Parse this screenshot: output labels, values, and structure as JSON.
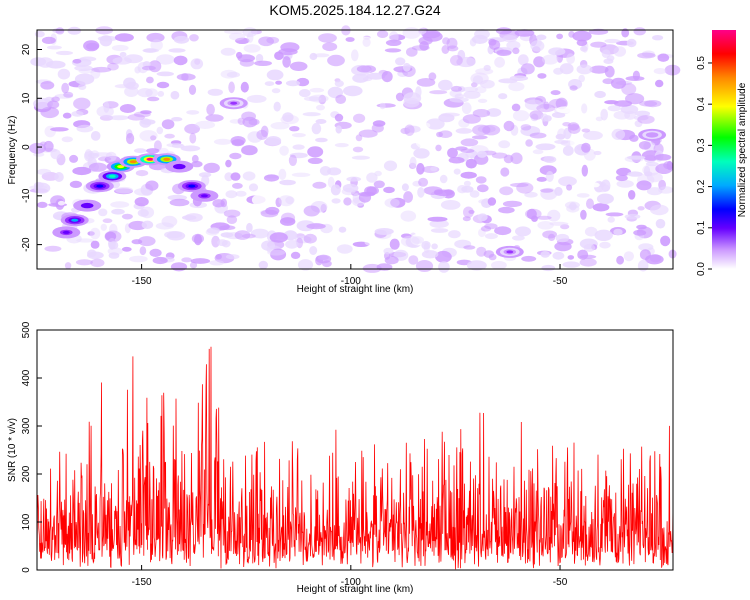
{
  "chart_data": [
    {
      "type": "heatmap",
      "title": "KOM5.2025.184.12.27.G24",
      "xlabel": "Height of straight line (km)",
      "ylabel": "Frequency (Hz)",
      "xlim": [
        -175,
        -23
      ],
      "ylim": [
        -25,
        24
      ],
      "x_ticks": [
        -150,
        -100,
        -50
      ],
      "y_ticks": [
        20,
        10,
        0,
        -10,
        -20
      ],
      "colorbar": {
        "label": "Normalized spectral amplitude",
        "range": [
          0,
          0.58
        ],
        "ticks": [
          0.0,
          0.1,
          0.2,
          0.3,
          0.4,
          0.5
        ]
      },
      "features": [
        {
          "x": -155.0,
          "y": -4.0,
          "value": 0.45
        },
        {
          "x": -152.0,
          "y": -3.0,
          "value": 0.5
        },
        {
          "x": -148.0,
          "y": -2.5,
          "value": 0.57
        },
        {
          "x": -144.0,
          "y": -2.5,
          "value": 0.5
        },
        {
          "x": -157.0,
          "y": -6.0,
          "value": 0.32
        },
        {
          "x": -160.0,
          "y": -8.0,
          "value": 0.22
        },
        {
          "x": -163.0,
          "y": -12.0,
          "value": 0.2
        },
        {
          "x": -166.0,
          "y": -15.0,
          "value": 0.25
        },
        {
          "x": -168.0,
          "y": -17.5,
          "value": 0.18
        },
        {
          "x": -141.0,
          "y": -4.0,
          "value": 0.2
        },
        {
          "x": -138.0,
          "y": -8.0,
          "value": 0.24
        },
        {
          "x": -135.0,
          "y": -10.0,
          "value": 0.18
        },
        {
          "x": -128.0,
          "y": 9.0,
          "value": 0.12
        },
        {
          "x": -62.0,
          "y": -21.5,
          "value": 0.12
        },
        {
          "x": -28.0,
          "y": 2.5,
          "value": 0.1
        }
      ],
      "colors": {
        "scale": [
          "#ffffff",
          "#e8d8ff",
          "#cc99ff",
          "#9933ff",
          "#6600ff",
          "#0000ff",
          "#00aaff",
          "#00ffbb",
          "#00ff00",
          "#aaff00",
          "#ffff00",
          "#ff8800",
          "#ff0000",
          "#ff0088"
        ]
      }
    },
    {
      "type": "line",
      "xlabel": "Height of straight line (km)",
      "ylabel": "SNR (10 * v/v)",
      "xlim": [
        -175,
        -23
      ],
      "ylim": [
        0,
        500
      ],
      "x_ticks": [
        -150,
        -100,
        -50
      ],
      "y_ticks": [
        0,
        100,
        200,
        300,
        400,
        500
      ],
      "series": [
        {
          "x": [
            -175,
            -170,
            -165,
            -160,
            -158,
            -155,
            -152,
            -150,
            -147,
            -144,
            -141,
            -138,
            -135,
            -132,
            -129,
            -125,
            -120,
            -115,
            -110,
            -105,
            -100,
            -95,
            -90,
            -85,
            -80,
            -75,
            -70,
            -65,
            -60,
            -55,
            -50,
            -45,
            -40,
            -35,
            -30,
            -25,
            -23
          ],
          "values": [
            190,
            180,
            200,
            360,
            210,
            250,
            380,
            230,
            320,
            300,
            220,
            300,
            480,
            330,
            250,
            220,
            200,
            220,
            180,
            200,
            210,
            170,
            190,
            200,
            210,
            190,
            250,
            190,
            230,
            200,
            210,
            200,
            220,
            190,
            210,
            230,
            200
          ],
          "color": "#ff0000"
        }
      ]
    }
  ]
}
